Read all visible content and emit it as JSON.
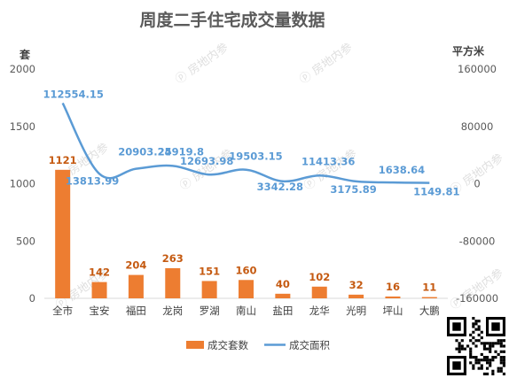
{
  "chart_data": {
    "type": "bar",
    "title": "周度二手住宅成交量数据",
    "categories": [
      "全市",
      "宝安",
      "福田",
      "龙岗",
      "罗湖",
      "南山",
      "盐田",
      "龙华",
      "光明",
      "坪山",
      "大鹏"
    ],
    "series": [
      {
        "name": "成交套数",
        "type": "bar",
        "axis": "left",
        "values": [
          1121,
          142,
          204,
          263,
          151,
          160,
          40,
          102,
          32,
          16,
          11
        ],
        "labels": [
          "1121",
          "142",
          "204",
          "263",
          "151",
          "160",
          "40",
          "102",
          "32",
          "16",
          "11"
        ],
        "color": "#ed7d31"
      },
      {
        "name": "成交面积",
        "type": "line",
        "axis": "right",
        "values": [
          112554.15,
          13813.99,
          20903.25,
          24919.8,
          12693.98,
          19503.15,
          3342.28,
          11413.36,
          3175.89,
          1638.64,
          1149.81
        ],
        "labels": [
          "112554.15",
          "13813.99",
          "20903.25",
          "24919.8",
          "12693.98",
          "19503.15",
          "3342.28",
          "11413.36",
          "3175.89",
          "1638.64",
          "1149.81"
        ],
        "color": "#5b9bd5"
      }
    ],
    "y_left": {
      "label": "套",
      "ylim": [
        0,
        2000
      ],
      "ticks": [
        0,
        500,
        1000,
        1500,
        2000
      ],
      "tick_labels": [
        "0",
        "500",
        "1000",
        "1500",
        "2000"
      ]
    },
    "y_right": {
      "label": "平方米",
      "ylim": [
        -160000,
        160000
      ],
      "ticks": [
        -160000,
        -80000,
        0,
        80000,
        160000
      ],
      "tick_labels": [
        "-160000",
        "-80000",
        "0",
        "80000",
        "160000"
      ]
    },
    "legend": {
      "position": "bottom",
      "items": [
        "成交套数",
        "成交面积"
      ]
    },
    "grid": false,
    "watermark": "房地内参"
  }
}
